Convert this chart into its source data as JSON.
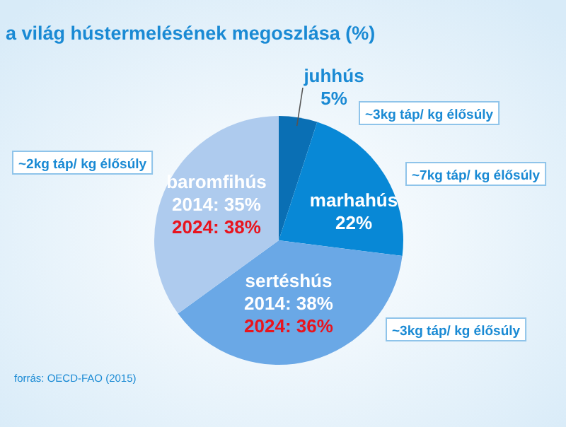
{
  "chart_data": {
    "type": "pie",
    "title": "a világ hústermelésének megoszlása (%)",
    "categories": [
      "juhhús",
      "marhahús",
      "sertéshús",
      "baromfihús"
    ],
    "values": [
      5,
      22,
      38,
      35
    ],
    "colors": [
      "#0a6fb4",
      "#0888d6",
      "#6aa8e6",
      "#aecbee"
    ],
    "value_labels": [
      "5%",
      "22%",
      "2014: 38%",
      "2014: 35%"
    ],
    "annotations": [
      "~3kg táp/ kg élősúly",
      "~7kg táp/ kg élősúly",
      "~3kg táp/ kg élősúly",
      "~2kg táp/ kg élősúly",
      "2024: 36%",
      "2024: 38%",
      "forrás: OECD-FAO (2015)"
    ]
  }
}
